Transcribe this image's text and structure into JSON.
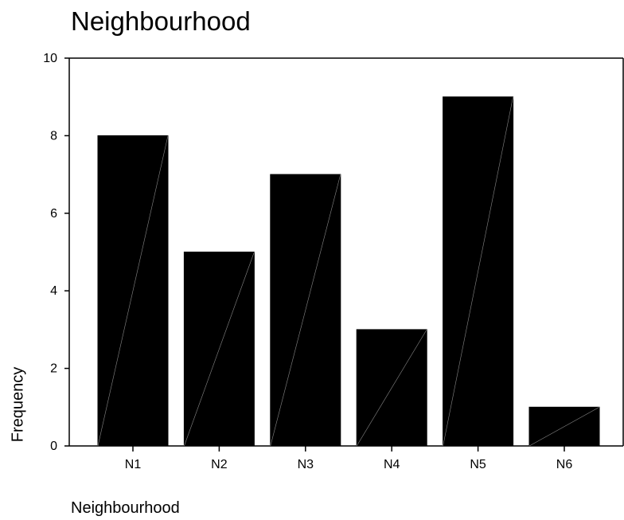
{
  "chart_data": {
    "type": "bar",
    "title": "Neighbourhood",
    "xlabel": "Neighbourhood",
    "ylabel": "Frequency",
    "categories": [
      "N1",
      "N2",
      "N3",
      "N4",
      "N5",
      "N6"
    ],
    "values": [
      8,
      5,
      7,
      3,
      9,
      1
    ],
    "ylim": [
      0,
      10
    ],
    "yticks": [
      0,
      2,
      4,
      6,
      8,
      10
    ],
    "grid": false,
    "bar_color": "#000000",
    "diagonal_color": "#888888"
  }
}
